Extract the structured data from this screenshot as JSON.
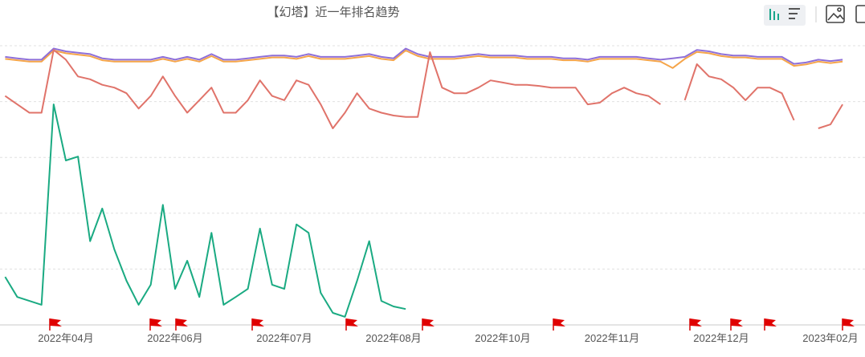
{
  "chart_data": {
    "type": "line",
    "title": "【幻塔】近一年排名趋势",
    "categories": [
      null,
      null,
      null,
      null,
      null,
      "2022年04月",
      null,
      null,
      null,
      null,
      null,
      null,
      null,
      null,
      "2022年06月",
      null,
      null,
      null,
      null,
      null,
      null,
      null,
      null,
      "2022年07月",
      null,
      null,
      null,
      null,
      null,
      null,
      null,
      null,
      "2022年08月",
      null,
      null,
      null,
      null,
      null,
      null,
      null,
      null,
      "2022年10月",
      null,
      null,
      null,
      null,
      null,
      null,
      null,
      null,
      "2022年11月",
      null,
      null,
      null,
      null,
      null,
      null,
      null,
      null,
      "2022年12月",
      null,
      null,
      null,
      null,
      null,
      null,
      null,
      null,
      "2023年02月",
      null,
      null
    ],
    "ylim": [
      0,
      100
    ],
    "yticks": [
      0,
      20,
      40,
      60,
      80,
      100
    ],
    "grid": true,
    "series": [
      {
        "color": "#f5a54a",
        "values": [
          95.3,
          94.8,
          94.3,
          94.3,
          98.3,
          97.3,
          96.8,
          96.3,
          94.8,
          94.3,
          94.3,
          94.3,
          94.3,
          95.3,
          94.3,
          95.3,
          94.3,
          96.3,
          94.3,
          94.3,
          94.8,
          95.3,
          95.8,
          95.8,
          95.3,
          96.3,
          95.3,
          95.3,
          95.3,
          95.8,
          96.3,
          95.3,
          94.8,
          98.3,
          96.3,
          95.3,
          95.3,
          95.3,
          95.8,
          96.3,
          95.8,
          95.8,
          95.8,
          95.3,
          95.3,
          95.3,
          94.8,
          94.8,
          94.3,
          95.3,
          95.3,
          95.3,
          95.3,
          94.8,
          94.3,
          92,
          95.3,
          97.8,
          97.3,
          96.3,
          95.8,
          95.8,
          95.3,
          95.3,
          95.3,
          92.8,
          93.3,
          94.3,
          93.8,
          94.3,
          null
        ]
      },
      {
        "color": "#8e6fd8",
        "values": [
          96,
          95.5,
          95,
          95,
          99,
          98,
          97.5,
          97,
          95.5,
          95,
          95,
          95,
          95,
          96,
          95,
          96,
          95,
          97,
          95,
          95,
          95.5,
          96,
          96.5,
          96.5,
          96,
          97,
          96,
          96,
          96,
          96.5,
          97,
          96,
          95.5,
          99,
          97,
          96,
          96,
          96,
          96.5,
          97,
          96.5,
          96.5,
          96.5,
          96,
          96,
          96,
          95.5,
          95.5,
          95,
          96,
          96,
          96,
          96,
          95.5,
          95,
          95.5,
          96,
          98.5,
          98,
          97,
          96.5,
          96.5,
          96,
          96,
          96,
          93.5,
          94,
          95,
          94.5,
          95,
          null
        ]
      },
      {
        "color": "#e0736a",
        "values": [
          82,
          79,
          76,
          76,
          98.5,
          95,
          89,
          88,
          86,
          85,
          83,
          77.5,
          82,
          89,
          82,
          76,
          80.5,
          85,
          76,
          76,
          80.5,
          87.6,
          82,
          80.5,
          87.6,
          86,
          79,
          70.4,
          76,
          83,
          77.5,
          76,
          75,
          74.5,
          74.5,
          97.7,
          85,
          83,
          83,
          85,
          87.6,
          86.8,
          86,
          86,
          85.6,
          85,
          85,
          85,
          79,
          79.6,
          83,
          85,
          83,
          82,
          79,
          null,
          80.5,
          93.4,
          89,
          88,
          85,
          80.5,
          85,
          85,
          83,
          73.3,
          null,
          70.4,
          71.8,
          79,
          null
        ]
      },
      {
        "color": "#1aaa82",
        "values": [
          17.2,
          10,
          8.6,
          7.2,
          79,
          58.9,
          60.3,
          30,
          41.7,
          27,
          15.8,
          7.2,
          14.4,
          43,
          12.9,
          23,
          10,
          33,
          7.2,
          10,
          12.9,
          34.5,
          14.4,
          12.9,
          36,
          33,
          11.5,
          4.3,
          2.9,
          15.8,
          30,
          8.6,
          6.6,
          5.7,
          null,
          null,
          null,
          null,
          null,
          null,
          null,
          null,
          null,
          null,
          null,
          null,
          null,
          null,
          null,
          null,
          null,
          null,
          null,
          null,
          null,
          null,
          null,
          null,
          null,
          null,
          null,
          null,
          null,
          null,
          null,
          null,
          null,
          null,
          null,
          null,
          null
        ]
      }
    ]
  }
}
